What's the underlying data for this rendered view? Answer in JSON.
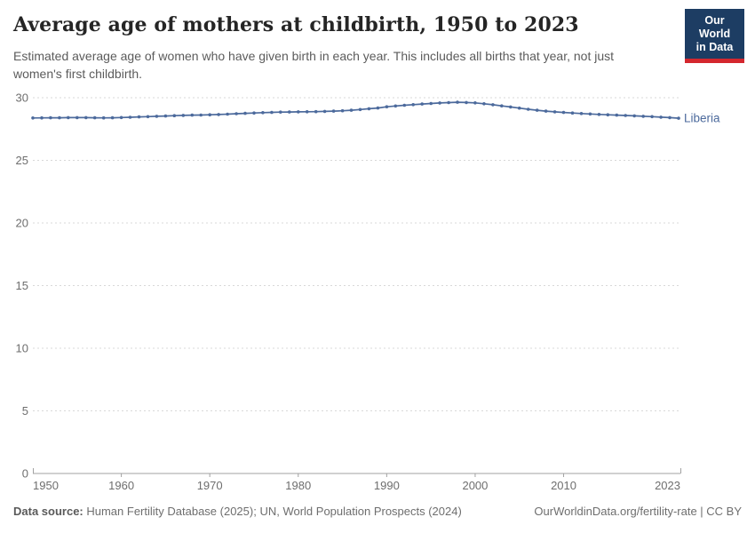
{
  "header": {
    "title": "Average age of mothers at childbirth, 1950 to 2023",
    "subtitle_line1": "Estimated average age of women who have given birth in each year. This includes all births that year, not just",
    "subtitle_line2": "women's first childbirth."
  },
  "logo": {
    "line1": "Our World",
    "line2": "in Data"
  },
  "footer": {
    "source_label": "Data source:",
    "source_text": " Human Fertility Database (2025); UN, World Population Prospects (2024)",
    "link_text": "OurWorldinData.org/fertility-rate | CC BY"
  },
  "colors": {
    "line": "#4c6a9c",
    "gridline": "#d8d8d8",
    "axis": "#a1a1a1",
    "tick_label": "#6e6e6e",
    "logo_bg": "#1d3d63",
    "logo_stripe": "#d4272e"
  },
  "chart_data": {
    "type": "line",
    "title": "Average age of mothers at childbirth, 1950 to 2023",
    "xlabel": "",
    "ylabel": "",
    "xlim": [
      1950,
      2023
    ],
    "ylim": [
      0,
      30
    ],
    "yticks": [
      0,
      5,
      10,
      15,
      20,
      25,
      30
    ],
    "xticks": [
      1950,
      1960,
      1970,
      1980,
      1990,
      2000,
      2010,
      2023
    ],
    "grid": "horizontal-dashed",
    "legend_position": "end-of-line-label",
    "series": [
      {
        "name": "Liberia",
        "color": "#4c6a9c",
        "x": [
          1950,
          1951,
          1952,
          1953,
          1954,
          1955,
          1956,
          1957,
          1958,
          1959,
          1960,
          1961,
          1962,
          1963,
          1964,
          1965,
          1966,
          1967,
          1968,
          1969,
          1970,
          1971,
          1972,
          1973,
          1974,
          1975,
          1976,
          1977,
          1978,
          1979,
          1980,
          1981,
          1982,
          1983,
          1984,
          1985,
          1986,
          1987,
          1988,
          1989,
          1990,
          1991,
          1992,
          1993,
          1994,
          1995,
          1996,
          1997,
          1998,
          1999,
          2000,
          2001,
          2002,
          2003,
          2004,
          2005,
          2006,
          2007,
          2008,
          2009,
          2010,
          2011,
          2012,
          2013,
          2014,
          2015,
          2016,
          2017,
          2018,
          2019,
          2020,
          2021,
          2022,
          2023
        ],
        "values": [
          28.38,
          28.39,
          28.4,
          28.4,
          28.41,
          28.41,
          28.41,
          28.4,
          28.39,
          28.4,
          28.42,
          28.44,
          28.47,
          28.49,
          28.52,
          28.54,
          28.57,
          28.59,
          28.61,
          28.62,
          28.64,
          28.66,
          28.69,
          28.72,
          28.75,
          28.78,
          28.81,
          28.83,
          28.85,
          28.86,
          28.87,
          28.88,
          28.89,
          28.91,
          28.93,
          28.96,
          29.0,
          29.06,
          29.12,
          29.18,
          29.28,
          29.34,
          29.4,
          29.45,
          29.5,
          29.54,
          29.58,
          29.61,
          29.64,
          29.62,
          29.59,
          29.52,
          29.44,
          29.35,
          29.26,
          29.17,
          29.08,
          29.0,
          28.93,
          28.87,
          28.82,
          28.78,
          28.74,
          28.7,
          28.67,
          28.64,
          28.61,
          28.58,
          28.55,
          28.52,
          28.49,
          28.45,
          28.41,
          28.36
        ]
      }
    ]
  }
}
